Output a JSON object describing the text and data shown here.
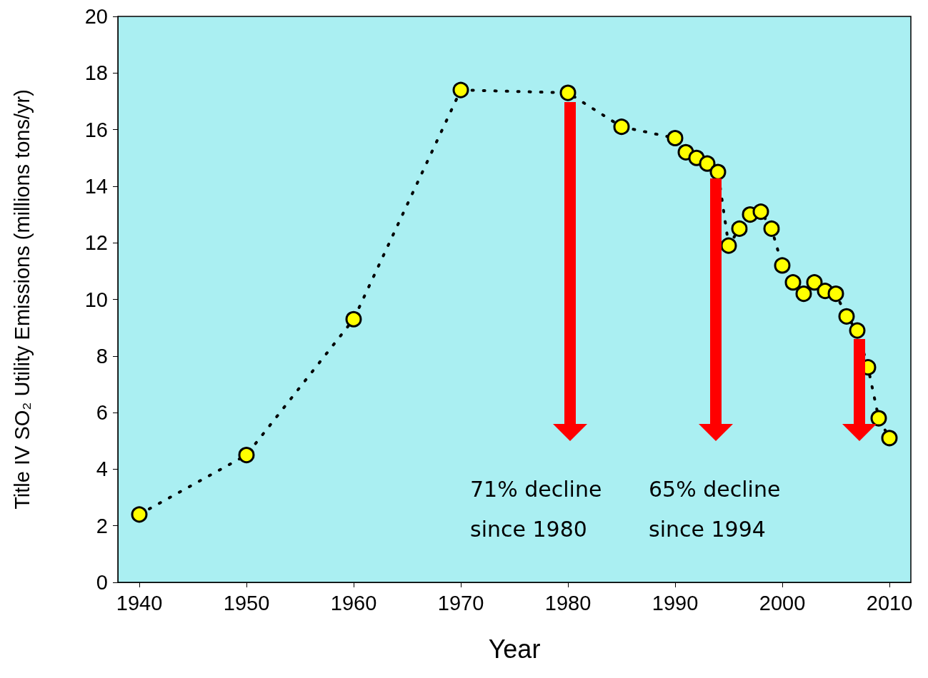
{
  "chart_data": {
    "type": "line",
    "xlabel": "Year",
    "ylabel": "Title IV SO₂ Utility Emissions (millions tons/yr)",
    "x": [
      1940,
      1950,
      1960,
      1970,
      1980,
      1985,
      1990,
      1991,
      1992,
      1993,
      1994,
      1995,
      1996,
      1997,
      1998,
      1999,
      2000,
      2001,
      2002,
      2003,
      2004,
      2005,
      2006,
      2007,
      2008,
      2009,
      2010
    ],
    "series": [
      {
        "color": "#ffff00",
        "values": [
          2.4,
          4.5,
          9.3,
          17.4,
          17.3,
          16.1,
          15.7,
          15.2,
          15.0,
          14.8,
          14.5,
          11.9,
          12.5,
          13.0,
          13.1,
          12.5,
          11.2,
          10.6,
          10.2,
          10.6,
          10.3,
          10.2,
          9.4,
          8.9,
          7.6,
          5.8,
          5.1
        ]
      }
    ],
    "xlim": [
      1938,
      2012
    ],
    "xticks": [
      1940,
      1950,
      1960,
      1970,
      1980,
      1990,
      2000,
      2010
    ],
    "ylim": [
      0,
      20
    ],
    "yticks": [
      0,
      2,
      4,
      6,
      8,
      10,
      12,
      14,
      16,
      18,
      20
    ],
    "marker": "circle",
    "line_style": "dotted",
    "grid": false,
    "annotations": [
      "71% decline\nsince 1980",
      "65% decline\nsince 1994"
    ]
  }
}
